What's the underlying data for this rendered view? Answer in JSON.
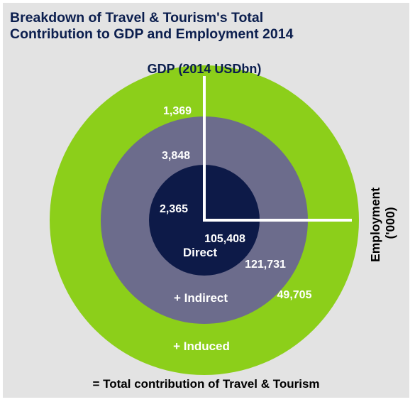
{
  "title_lines": [
    "Breakdown of Travel & Tourism's Total",
    "Contribution to GDP and Employment 2014"
  ],
  "footer": "= Total contribution of Travel & Tourism",
  "colors": {
    "background": "#e3e3e3",
    "title": "#0b1e4e",
    "induced_ring": "#8ccf1a",
    "indirect_ring": "#6c6c8c",
    "direct_core": "#0d1a48",
    "divider_lines": "#ffffff"
  },
  "chart_data": {
    "type": "nested-circles",
    "title": "Breakdown of Travel & Tourism's Total Contribution to GDP and Employment 2014",
    "axes": {
      "gdp_label": "GDP (2014 USDbn)",
      "employment_label": "Employment ('000)",
      "employment_label_lines": [
        "Employment",
        "('000)"
      ]
    },
    "layers": [
      {
        "name": "Direct",
        "ring_label": "Direct",
        "gdp": "2,365",
        "employment": "105,408"
      },
      {
        "name": "Indirect",
        "ring_label": "+ Indirect",
        "gdp": "3,848",
        "employment": "121,731"
      },
      {
        "name": "Induced",
        "ring_label": "+ Induced",
        "gdp": "1,369",
        "employment": "49,705"
      }
    ],
    "footer": "= Total contribution of Travel & Tourism"
  }
}
